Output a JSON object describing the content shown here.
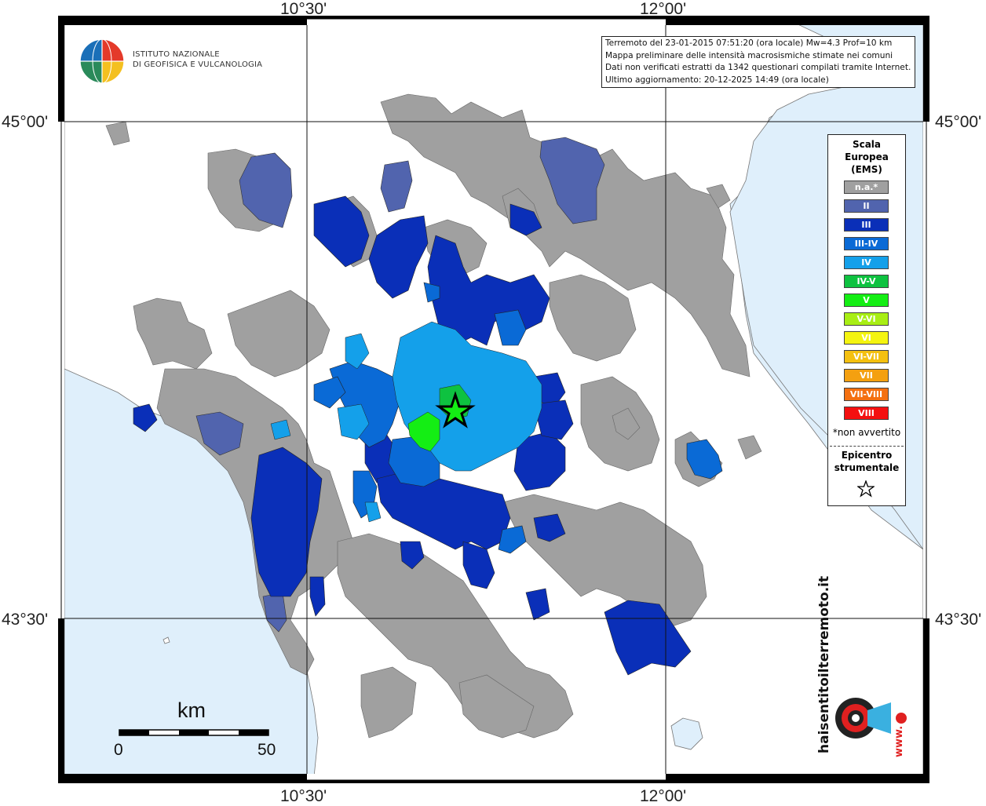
{
  "info": {
    "line1": "Terremoto del 23-01-2015 07:51:20 (ora locale) Mw=4.3 Prof=10 km",
    "line2": "Mappa preliminare delle intensità macrosismiche stimate nei comuni",
    "line3": "Dati non verificati estratti da 1342 questionari compilati tramite Internet.",
    "line4": "Ultimo aggiornamento: 20-12-2025 14:49 (ora locale)"
  },
  "coords": {
    "top_left": "10°30'",
    "top_right": "12°00'",
    "bottom_left": "10°30'",
    "bottom_right": "12°00'",
    "left_upper": "45°00'",
    "left_lower": "43°30'",
    "right_upper": "45°00'",
    "right_lower": "43°30'"
  },
  "logo": {
    "line1": "ISTITUTO NAZIONALE",
    "line2": "DI GEOFISICA E VULCANOLOGIA"
  },
  "scale_bar": {
    "unit": "km",
    "min": "0",
    "max": "50"
  },
  "legend": {
    "title1": "Scala",
    "title2": "Europea",
    "title3": "(EMS)",
    "items": [
      {
        "label": "n.a.*",
        "color": "#a0a0a0"
      },
      {
        "label": "II",
        "color": "#5164ae"
      },
      {
        "label": "III",
        "color": "#0a2fb8"
      },
      {
        "label": "III-IV",
        "color": "#0a6ad6"
      },
      {
        "label": "IV",
        "color": "#14a0ea"
      },
      {
        "label": "IV-V",
        "color": "#0ec240"
      },
      {
        "label": "V",
        "color": "#14ee14"
      },
      {
        "label": "V-VI",
        "color": "#a8ee14"
      },
      {
        "label": "VI",
        "color": "#f4f410"
      },
      {
        "label": "VI-VII",
        "color": "#f4c010"
      },
      {
        "label": "VII",
        "color": "#f4a010"
      },
      {
        "label": "VII-VIII",
        "color": "#f47010"
      },
      {
        "label": "VIII",
        "color": "#f41010"
      }
    ],
    "note": "*non avvertito",
    "epi1": "Epicentro",
    "epi2": "strumentale"
  },
  "hsit": {
    "text": "haisentitoilterremoto.it",
    "prefix": "www."
  },
  "colors": {
    "sea": "#dfeffb",
    "land": "#ffffff",
    "na": "#a0a0a0",
    "ii": "#5164ae",
    "iii": "#0a2fb8",
    "iii_iv": "#0a6ad6",
    "iv": "#14a0ea",
    "v": "#14ee14",
    "iv_v": "#0ec240"
  }
}
